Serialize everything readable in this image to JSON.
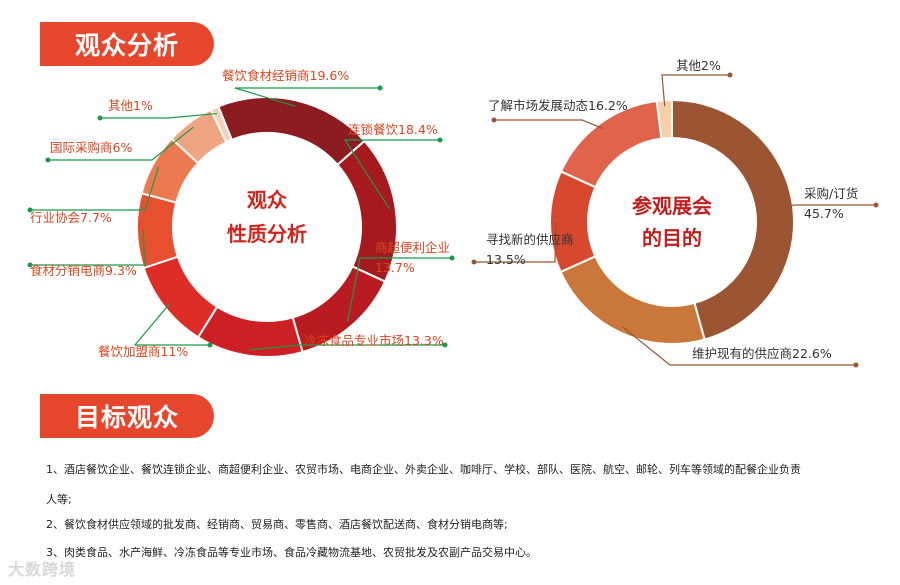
{
  "sections": {
    "analysis_title": "观众分析",
    "target_title": "目标观众"
  },
  "chart_data": [
    {
      "type": "pie",
      "donut": true,
      "center_lines": [
        "观众",
        "性质分析"
      ],
      "labels": [
        "餐饮食材经销商",
        "连锁餐饮",
        "商超便利企业",
        "冷冻食品专业市场",
        "餐饮加盟商",
        "食材分销电商",
        "行业协会",
        "国际采购商",
        "其他"
      ],
      "values": [
        19.6,
        18.4,
        13.7,
        13.3,
        11,
        9.3,
        7.7,
        6,
        1
      ],
      "value_labels": [
        "19.6%",
        "18.4%",
        "13.7%",
        "13.3%",
        "11%",
        "9.3%",
        "7.7%",
        "6%",
        "1%"
      ],
      "colors": [
        "#8c1c22",
        "#a5191f",
        "#ba1b20",
        "#cc2025",
        "#de2c27",
        "#e6502f",
        "#ec7a50",
        "#f0a582",
        "#f6cfb8"
      ],
      "start_angle": -22
    },
    {
      "type": "pie",
      "donut": true,
      "center_lines": [
        "参观展会",
        "的目的"
      ],
      "labels": [
        "采购/订货",
        "维护现有的供应商",
        "寻找新的供应商",
        "了解市场发展动态",
        "其他"
      ],
      "values": [
        45.7,
        22.6,
        13.5,
        16.2,
        2
      ],
      "value_labels": [
        "45.7%",
        "22.6%",
        "13.5%",
        "16.2%",
        "2%"
      ],
      "colors": [
        "#9b5533",
        "#c9773a",
        "#d7482f",
        "#e0634c",
        "#f7cfa6"
      ],
      "start_angle": 0
    }
  ],
  "audience_items": [
    "1、酒店餐饮企业、餐饮连锁企业、商超便利企业、农贸市场、电商企业、外卖企业、咖啡厅、学校、部队、医院、航空、邮轮、列车等领域的配餐企业负责",
    "人等;",
    "2、餐饮食材供应领域的批发商、经销商、贸易商、零售商、酒店餐饮配送商、食材分销电商等;",
    "3、肉类食品、水产海鲜、冷冻食品等专业市场、食品冷藏物流基地、农贸批发及农副产品交易中心。"
  ],
  "watermark": "大数跨境"
}
